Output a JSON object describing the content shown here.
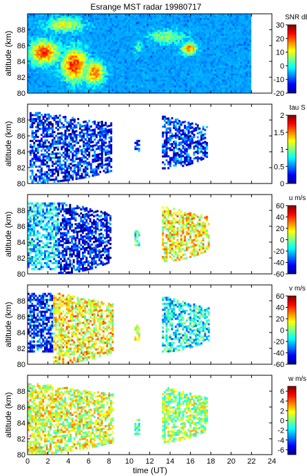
{
  "chart_data": {
    "type": "heatmap",
    "title": "Esrange MST radar 19980717",
    "xlabel": "time (UT)",
    "xlim": [
      0,
      24
    ],
    "xticks": [
      "0",
      "2",
      "4",
      "6",
      "8",
      "10",
      "12",
      "14",
      "16",
      "18",
      "20",
      "22",
      "24"
    ],
    "panels": [
      {
        "ylabel": "altitude (km)",
        "ylim": [
          80,
          90
        ],
        "yticks": [
          "80",
          "82",
          "84",
          "86",
          "88"
        ],
        "colorbar": {
          "label": "SNR dB",
          "range": [
            -20,
            30
          ],
          "ticks": [
            "-20",
            "-10",
            "0",
            "10",
            "20",
            "30"
          ]
        },
        "colormap": "jet",
        "data_time_range": [
          0,
          21.8
        ],
        "blobs": [
          {
            "t": 1.5,
            "z": 85.0,
            "value": 20,
            "spread_t": 1.6,
            "spread_z": 1.6
          },
          {
            "t": 4.5,
            "z": 83.5,
            "value": 22,
            "spread_t": 1.3,
            "spread_z": 2.2
          },
          {
            "t": 6.5,
            "z": 82.5,
            "value": 18,
            "spread_t": 1.0,
            "spread_z": 1.6
          },
          {
            "t": 3.5,
            "z": 88.5,
            "value": 10,
            "spread_t": 2.0,
            "spread_z": 1.0
          },
          {
            "t": 15.8,
            "z": 85.5,
            "value": 18,
            "spread_t": 0.8,
            "spread_z": 0.8
          },
          {
            "t": 13.5,
            "z": 87.0,
            "value": 6,
            "spread_t": 2.0,
            "spread_z": 1.0
          },
          {
            "t": 10.8,
            "z": 85.5,
            "value": 2,
            "spread_t": 0.4,
            "spread_z": 1.0
          }
        ],
        "background_value": -10
      },
      {
        "ylabel": "altitude (km)",
        "ylim": [
          80,
          90
        ],
        "yticks": [
          "80",
          "82",
          "84",
          "86",
          "88"
        ],
        "colorbar": {
          "label": "tau S",
          "range": [
            0,
            2
          ],
          "ticks": [
            "0",
            "0.5",
            "1",
            "1.5",
            "2"
          ]
        },
        "colormap": "jet",
        "regions": [
          {
            "t0": 0.2,
            "t1": 8.2,
            "z0": 80.0,
            "z1": 89.0,
            "value": 0.3,
            "taper": true
          },
          {
            "t0": 10.5,
            "t1": 11.0,
            "z0": 84.0,
            "z1": 85.5,
            "value": 0.35
          },
          {
            "t0": 13.2,
            "t1": 17.6,
            "z0": 81.8,
            "z1": 88.5,
            "value": 0.35,
            "taper": true
          }
        ]
      },
      {
        "ylabel": "altitude (km)",
        "ylim": [
          80,
          90
        ],
        "yticks": [
          "80",
          "82",
          "84",
          "86",
          "88"
        ],
        "colorbar": {
          "label": "u m/s",
          "range": [
            -60,
            60
          ],
          "ticks": [
            "-60",
            "-40",
            "-20",
            "0",
            "20",
            "40",
            "60"
          ]
        },
        "colormap": "jet",
        "regions": [
          {
            "t0": 0.0,
            "t1": 3.0,
            "z0": 80.5,
            "z1": 89.0,
            "value": -20,
            "taper": false
          },
          {
            "t0": 3.0,
            "t1": 8.2,
            "z0": 80.0,
            "z1": 89.0,
            "value": -45,
            "taper": true
          },
          {
            "t0": 10.5,
            "t1": 11.0,
            "z0": 83.5,
            "z1": 85.5,
            "value": -10
          },
          {
            "t0": 13.2,
            "t1": 17.8,
            "z0": 81.5,
            "z1": 88.5,
            "value": 15,
            "taper": true
          }
        ]
      },
      {
        "ylabel": "altitude (km)",
        "ylim": [
          80,
          90
        ],
        "yticks": [
          "80",
          "82",
          "84",
          "86",
          "88"
        ],
        "colorbar": {
          "label": "v m/s",
          "range": [
            -60,
            60
          ],
          "ticks": [
            "-60",
            "-40",
            "-20",
            "0",
            "20",
            "40",
            "60"
          ]
        },
        "colormap": "jet",
        "regions": [
          {
            "t0": 0.0,
            "t1": 2.5,
            "z0": 81.5,
            "z1": 89.0,
            "value": -40,
            "taper": false
          },
          {
            "t0": 2.5,
            "t1": 8.4,
            "z0": 80.0,
            "z1": 89.0,
            "value": 15,
            "taper": true
          },
          {
            "t0": 10.5,
            "t1": 11.0,
            "z0": 83.0,
            "z1": 85.0,
            "value": 10
          },
          {
            "t0": 13.2,
            "t1": 17.8,
            "z0": 81.5,
            "z1": 88.5,
            "value": -15,
            "taper": true
          }
        ]
      },
      {
        "ylabel": "altitude (km)",
        "ylim": [
          80,
          90
        ],
        "yticks": [
          "80",
          "82",
          "84",
          "86",
          "88"
        ],
        "colorbar": {
          "label": "w m/s",
          "range": [
            -7,
            7
          ],
          "ticks": [
            "-6",
            "-4",
            "-2",
            "0",
            "2",
            "4",
            "6"
          ]
        },
        "colormap": "jet",
        "regions": [
          {
            "t0": 0.0,
            "t1": 8.4,
            "z0": 80.0,
            "z1": 89.0,
            "value": 1.2,
            "taper": true
          },
          {
            "t0": 10.5,
            "t1": 11.0,
            "z0": 82.5,
            "z1": 84.5,
            "value": 0.0
          },
          {
            "t0": 13.2,
            "t1": 17.6,
            "z0": 81.5,
            "z1": 88.5,
            "value": 0.5,
            "taper": true
          }
        ]
      }
    ]
  }
}
